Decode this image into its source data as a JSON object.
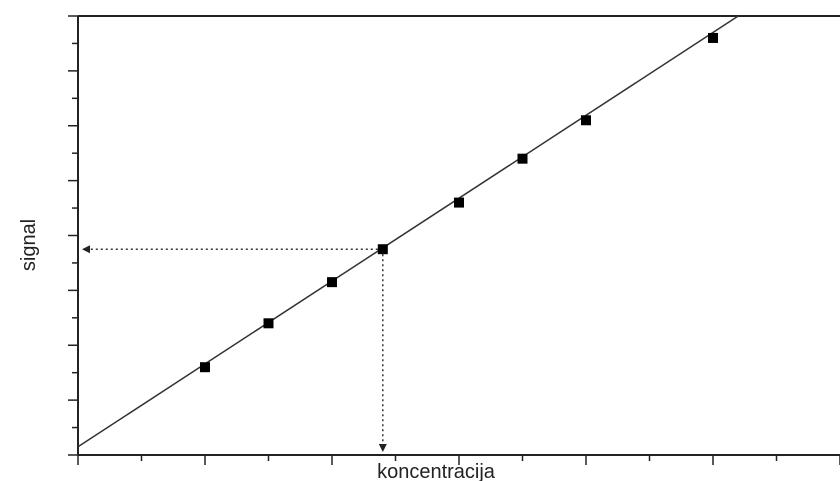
{
  "chart_data": {
    "type": "scatter",
    "title": "",
    "xlabel": "koncentracija",
    "ylabel": "signal",
    "xlim": [
      0,
      12
    ],
    "ylim": [
      0,
      8
    ],
    "x_tick_labels": "none",
    "y_tick_labels": "none",
    "grid": false,
    "legend": "none",
    "series": [
      {
        "marker": "square",
        "color": "#000000",
        "points": [
          {
            "x": 2,
            "y": 1.6
          },
          {
            "x": 3,
            "y": 2.4
          },
          {
            "x": 4,
            "y": 3.15
          },
          {
            "x": 4.8,
            "y": 3.75
          },
          {
            "x": 6,
            "y": 4.6
          },
          {
            "x": 7,
            "y": 5.4
          },
          {
            "x": 8,
            "y": 6.1
          },
          {
            "x": 10,
            "y": 7.6
          }
        ]
      }
    ],
    "fit_line": {
      "slope": 0.755,
      "intercept": 0.15,
      "color": "#333333"
    },
    "annotation": {
      "style": "dotted-arrows",
      "point": {
        "x": 4.8,
        "y": 3.75
      },
      "arrows": [
        "to-y-axis",
        "to-x-axis"
      ]
    }
  }
}
